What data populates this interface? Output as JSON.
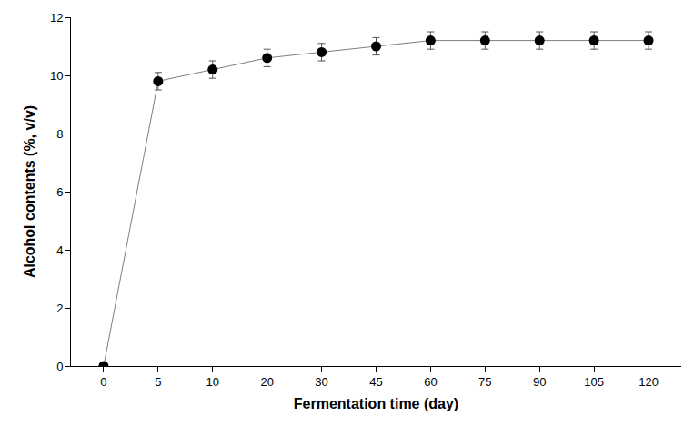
{
  "chart_data": {
    "type": "line",
    "x_label": "Fermentation time (day)",
    "y_label": "Alcohol contents (%, v/v)",
    "categories": [
      "0",
      "5",
      "10",
      "20",
      "30",
      "45",
      "60",
      "75",
      "90",
      "105",
      "120"
    ],
    "values": [
      0,
      9.8,
      10.2,
      10.6,
      10.8,
      11.0,
      11.2,
      11.2,
      11.2,
      11.2,
      11.2
    ],
    "errors": [
      0,
      0.3,
      0.3,
      0.3,
      0.3,
      0.3,
      0.3,
      0.3,
      0.3,
      0.3,
      0.3
    ],
    "color": "#000000",
    "marker": "circle",
    "ylim": [
      0,
      12
    ],
    "yticks": [
      0,
      2,
      4,
      6,
      8,
      10,
      12
    ],
    "grid": false
  }
}
